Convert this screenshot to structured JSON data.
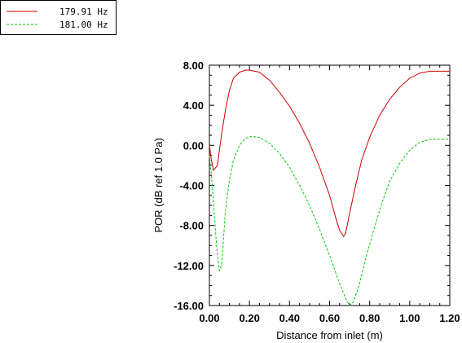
{
  "chart_data": {
    "type": "line",
    "xlabel": "Distance from inlet (m)",
    "ylabel": "POR (dB ref 1.0 Pa)",
    "xlim": [
      0.0,
      1.2
    ],
    "ylim": [
      -16.0,
      8.0
    ],
    "x_ticks": [
      "0.00",
      "0.20",
      "0.40",
      "0.60",
      "0.80",
      "1.00",
      "1.20"
    ],
    "y_ticks": [
      "8.00",
      "4.00",
      "0.00",
      "-4.00",
      "-8.00",
      "-12.00",
      "-16.00"
    ],
    "grid": false,
    "legend_position": "top-left, outside plot",
    "series": [
      {
        "name": "179.91 Hz",
        "color": "#cc0000",
        "style": "solid",
        "points": [
          [
            0.0,
            0.0
          ],
          [
            0.01,
            -1.5
          ],
          [
            0.02,
            -2.5
          ],
          [
            0.04,
            -2.0
          ],
          [
            0.06,
            1.0
          ],
          [
            0.08,
            3.5
          ],
          [
            0.1,
            5.5
          ],
          [
            0.12,
            6.7
          ],
          [
            0.15,
            7.3
          ],
          [
            0.18,
            7.5
          ],
          [
            0.2,
            7.5
          ],
          [
            0.25,
            7.3
          ],
          [
            0.3,
            6.5
          ],
          [
            0.35,
            5.3
          ],
          [
            0.4,
            3.9
          ],
          [
            0.45,
            2.2
          ],
          [
            0.5,
            0.2
          ],
          [
            0.55,
            -2.2
          ],
          [
            0.6,
            -5.0
          ],
          [
            0.63,
            -7.2
          ],
          [
            0.65,
            -8.5
          ],
          [
            0.67,
            -9.1
          ],
          [
            0.68,
            -8.8
          ],
          [
            0.7,
            -6.8
          ],
          [
            0.73,
            -4.0
          ],
          [
            0.76,
            -1.5
          ],
          [
            0.8,
            0.8
          ],
          [
            0.85,
            3.0
          ],
          [
            0.9,
            4.6
          ],
          [
            0.95,
            5.8
          ],
          [
            1.0,
            6.7
          ],
          [
            1.05,
            7.2
          ],
          [
            1.1,
            7.4
          ],
          [
            1.2,
            7.4
          ]
        ]
      },
      {
        "name": "181.00 Hz",
        "color": "#00cc00",
        "style": "dashed",
        "points": [
          [
            0.0,
            -1.0
          ],
          [
            0.005,
            -2.0
          ],
          [
            0.01,
            -3.0
          ],
          [
            0.02,
            -5.5
          ],
          [
            0.03,
            -8.5
          ],
          [
            0.04,
            -11.0
          ],
          [
            0.05,
            -12.5
          ],
          [
            0.06,
            -12.0
          ],
          [
            0.07,
            -9.5
          ],
          [
            0.08,
            -6.5
          ],
          [
            0.1,
            -3.5
          ],
          [
            0.12,
            -1.5
          ],
          [
            0.15,
            0.0
          ],
          [
            0.18,
            0.7
          ],
          [
            0.21,
            0.9
          ],
          [
            0.25,
            0.8
          ],
          [
            0.3,
            0.2
          ],
          [
            0.35,
            -0.8
          ],
          [
            0.4,
            -2.2
          ],
          [
            0.45,
            -4.0
          ],
          [
            0.5,
            -6.0
          ],
          [
            0.55,
            -8.4
          ],
          [
            0.6,
            -11.0
          ],
          [
            0.65,
            -13.8
          ],
          [
            0.68,
            -15.3
          ],
          [
            0.7,
            -16.0
          ],
          [
            0.72,
            -15.6
          ],
          [
            0.75,
            -13.8
          ],
          [
            0.78,
            -11.3
          ],
          [
            0.82,
            -8.5
          ],
          [
            0.86,
            -5.8
          ],
          [
            0.9,
            -3.6
          ],
          [
            0.95,
            -1.8
          ],
          [
            1.0,
            -0.5
          ],
          [
            1.05,
            0.3
          ],
          [
            1.1,
            0.6
          ],
          [
            1.2,
            0.6
          ]
        ]
      }
    ]
  }
}
